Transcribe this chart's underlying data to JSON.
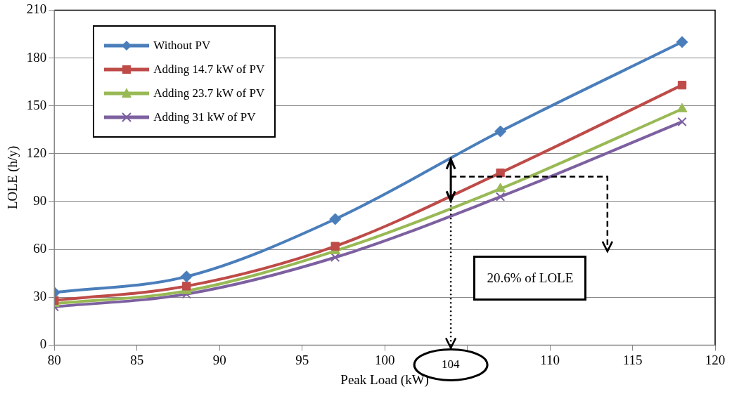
{
  "chart_data": {
    "type": "line",
    "xlabel": "Peak Load (kW)",
    "ylabel": "LOLE (h/y)",
    "x": [
      80,
      88,
      97,
      107,
      118
    ],
    "series": [
      {
        "name": "Without PV",
        "color": "#4a7ebb",
        "marker": "diamond",
        "values": [
          33,
          43,
          79,
          134,
          190
        ]
      },
      {
        "name": "Adding 14.7 kW of PV",
        "color": "#be4b48",
        "marker": "square",
        "values": [
          28,
          37,
          62,
          108,
          163
        ]
      },
      {
        "name": "Adding 23.7 kW of PV",
        "color": "#98b954",
        "marker": "triangle",
        "values": [
          26,
          34,
          59,
          98,
          148
        ]
      },
      {
        "name": "Adding 31 kW of PV",
        "color": "#7d60a0",
        "marker": "cross",
        "values": [
          24,
          32,
          55,
          93,
          140
        ]
      }
    ],
    "xlim": [
      80,
      120
    ],
    "xticks": [
      80,
      85,
      90,
      95,
      100,
      {
        "value": 105,
        "label": null
      },
      110,
      115,
      120
    ],
    "ylim": [
      0,
      210
    ],
    "yticks": [
      0,
      30,
      60,
      90,
      120,
      150,
      180,
      210
    ],
    "grid": "y",
    "legend": "top left",
    "annotations": [
      "104",
      "20.6% of LOLE"
    ]
  }
}
